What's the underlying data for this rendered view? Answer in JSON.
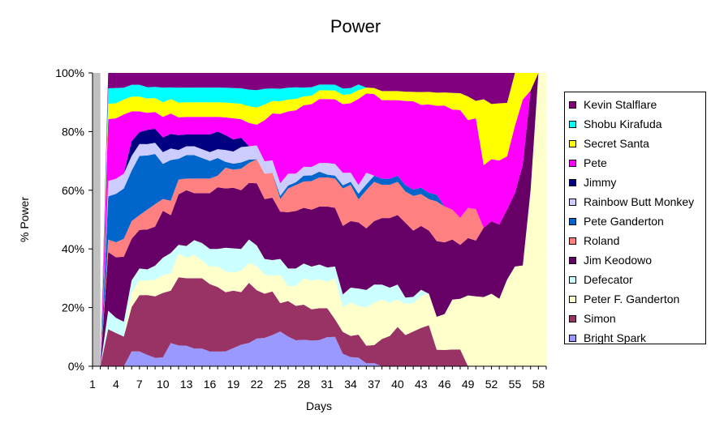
{
  "chart_data": {
    "type": "area",
    "stacked": "percent",
    "title": "Power",
    "xlabel": "Days",
    "ylabel": "% Power",
    "ylim": [
      0,
      100
    ],
    "y_ticks": [
      "0%",
      "20%",
      "40%",
      "60%",
      "80%",
      "100%"
    ],
    "x_ticks": [
      1,
      4,
      7,
      10,
      13,
      16,
      19,
      22,
      25,
      28,
      31,
      34,
      37,
      40,
      43,
      46,
      49,
      52,
      55,
      58
    ],
    "legend_position": "right",
    "x": [
      1,
      2,
      3,
      4,
      5,
      6,
      7,
      8,
      9,
      10,
      11,
      12,
      13,
      14,
      15,
      16,
      17,
      18,
      19,
      20,
      21,
      22,
      23,
      24,
      25,
      26,
      27,
      28,
      29,
      30,
      31,
      32,
      33,
      34,
      35,
      36,
      37,
      38,
      39,
      40,
      41,
      42,
      43,
      44,
      45,
      46,
      47,
      48,
      49,
      50,
      51,
      52,
      53,
      54,
      55,
      56,
      57,
      58,
      59
    ],
    "series": [
      {
        "name": "Bright Spark",
        "color": "#9999FF",
        "values": [
          0,
          0,
          0,
          0,
          0,
          5,
          5,
          4,
          3,
          3,
          8,
          7,
          7,
          6,
          6,
          5,
          5,
          5,
          6,
          7,
          7,
          8,
          9,
          10,
          11,
          10,
          9,
          9,
          9,
          9,
          10,
          10,
          4,
          3,
          3,
          1,
          1,
          0,
          0,
          0,
          0,
          0,
          0,
          0,
          0,
          0,
          0,
          0,
          0,
          0,
          0,
          0,
          0,
          0,
          0,
          0,
          0,
          0,
          0
        ]
      },
      {
        "name": "Simon",
        "color": "#993366",
        "values": [
          0,
          0,
          12,
          11,
          10,
          15,
          19,
          21,
          22,
          22,
          18,
          23,
          23,
          24,
          24,
          23,
          22,
          20,
          19,
          17,
          18,
          14,
          14,
          14,
          9,
          12,
          12,
          12,
          11,
          11,
          10,
          6,
          7,
          7,
          8,
          6,
          6,
          9,
          10,
          13,
          10,
          11,
          12,
          13,
          5,
          5,
          5,
          5,
          0,
          0,
          0,
          0,
          0,
          0,
          0,
          0,
          0,
          0,
          0
        ]
      },
      {
        "name": "Peter F. Ganderton",
        "color": "#FFFFCC",
        "values": [
          0,
          0,
          0,
          0,
          0,
          5,
          5,
          5,
          6,
          6,
          6,
          8,
          7,
          8,
          6,
          6,
          7,
          7,
          6,
          7,
          6,
          7,
          6,
          5,
          9,
          5,
          7,
          9,
          10,
          10,
          9,
          14,
          8,
          11,
          10,
          13,
          14,
          13,
          11,
          9,
          10,
          9,
          10,
          10,
          10,
          11,
          15,
          15,
          21,
          20,
          21,
          21,
          20,
          26,
          34,
          34,
          60,
          100,
          100
        ]
      },
      {
        "name": "Defecator",
        "color": "#CCFFFF",
        "values": [
          0,
          0,
          6,
          5,
          5,
          4,
          4,
          4,
          5,
          6,
          7,
          3,
          4,
          5,
          6,
          6,
          6,
          8,
          8,
          7,
          7,
          6,
          5,
          5,
          5,
          6,
          6,
          5,
          5,
          5,
          5,
          4,
          4,
          5,
          6,
          6,
          6,
          5,
          5,
          5,
          2,
          2,
          2,
          0,
          0,
          0,
          0,
          0,
          0,
          0,
          0,
          0,
          0,
          0,
          0,
          0,
          0,
          0,
          0
        ]
      },
      {
        "name": "Jim Keodowo",
        "color": "#660066",
        "values": [
          0,
          0,
          19,
          20,
          22,
          14,
          13,
          14,
          14,
          16,
          13,
          17,
          19,
          16,
          17,
          19,
          21,
          20,
          20,
          19,
          17,
          18,
          19,
          20,
          15,
          19,
          20,
          19,
          20,
          20,
          21,
          20,
          22,
          22,
          23,
          21,
          21,
          22,
          23,
          23,
          24,
          21,
          20,
          20,
          23,
          22,
          18,
          16,
          17,
          16,
          21,
          21,
          22,
          21,
          25,
          34,
          34,
          0,
          0
        ]
      },
      {
        "name": "Roland",
        "color": "#FF8080",
        "values": [
          0,
          0,
          4,
          5,
          6,
          6,
          5,
          7,
          8,
          4,
          5,
          5,
          4,
          5,
          5,
          5,
          4,
          7,
          6,
          7,
          6,
          7,
          8,
          8,
          4,
          8,
          9,
          9,
          10,
          10,
          10,
          10,
          12,
          12,
          8,
          13,
          13,
          11,
          11,
          11,
          10,
          11,
          10,
          10,
          12,
          11,
          9,
          8,
          9,
          9,
          0,
          0,
          0,
          0,
          0,
          0,
          0,
          0,
          0
        ]
      },
      {
        "name": "Pete Ganderton",
        "color": "#0066CC",
        "values": [
          0,
          0,
          14,
          16,
          17,
          17,
          20,
          19,
          18,
          12,
          14,
          7,
          8,
          8,
          7,
          6,
          6,
          2,
          2,
          2,
          1,
          0,
          0,
          0,
          1,
          1,
          1,
          2,
          2,
          2,
          1,
          1,
          1,
          1,
          2,
          2,
          2,
          2,
          2,
          2,
          2,
          2,
          2,
          2,
          2,
          0,
          0,
          0,
          0,
          0,
          0,
          0,
          0,
          0,
          0,
          0,
          0,
          0,
          0
        ]
      },
      {
        "name": "Rainbow Butt Monkey",
        "color": "#CCCCFF",
        "values": [
          0,
          0,
          5,
          5,
          5,
          5,
          4,
          4,
          4,
          4,
          4,
          3,
          3,
          3,
          3,
          3,
          3,
          4,
          4,
          5,
          4,
          4,
          4,
          4,
          4,
          4,
          3,
          3,
          3,
          3,
          4,
          4,
          4,
          3,
          3,
          4,
          0,
          0,
          0,
          0,
          0,
          0,
          0,
          0,
          0,
          0,
          0,
          0,
          0,
          0,
          0,
          0,
          0,
          0,
          0,
          0,
          0,
          0,
          0
        ]
      },
      {
        "name": "Jimmy",
        "color": "#000080",
        "values": [
          0,
          0,
          0,
          0,
          0,
          5,
          4,
          5,
          5,
          5,
          5,
          5,
          4,
          4,
          5,
          6,
          6,
          5,
          4,
          3,
          0,
          0,
          0,
          0,
          0,
          0,
          0,
          0,
          0,
          0,
          0,
          0,
          0,
          0,
          0,
          0,
          0,
          0,
          0,
          0,
          0,
          0,
          0,
          0,
          0,
          0,
          0,
          0,
          0,
          0,
          0,
          0,
          0,
          0,
          0,
          0,
          0,
          0,
          0
        ]
      },
      {
        "name": "Pete",
        "color": "#FF00FF",
        "values": [
          0,
          0,
          20,
          20,
          20,
          10,
          7,
          6,
          6,
          7,
          7,
          6,
          6,
          6,
          6,
          6,
          5,
          6,
          7,
          6,
          7,
          6,
          13,
          15,
          22,
          21,
          22,
          21,
          22,
          22,
          22,
          22,
          22,
          23,
          30,
          27,
          27,
          26,
          26,
          25,
          27,
          28,
          26,
          28,
          27,
          31,
          30,
          32,
          26,
          26,
          19,
          18,
          19,
          16,
          23,
          22,
          0,
          0,
          0
        ]
      },
      {
        "name": "Secret Santa",
        "color": "#FFFF00",
        "values": [
          0,
          0,
          5,
          5,
          5,
          5,
          5,
          5,
          5,
          5,
          5,
          5,
          5,
          5,
          5,
          5,
          5,
          5,
          5,
          5,
          5,
          5,
          5,
          4,
          4,
          4,
          4,
          3,
          3,
          3,
          3,
          3,
          3,
          3,
          3,
          2,
          2,
          3,
          3,
          3,
          3,
          3,
          4,
          4,
          4,
          4,
          5,
          5,
          7,
          5,
          20,
          16,
          17,
          16,
          18,
          9,
          6,
          0,
          0
        ]
      },
      {
        "name": "Shobu Kirafuda",
        "color": "#00FFFF",
        "values": [
          0,
          0,
          5,
          5,
          4,
          4,
          4,
          4,
          4,
          5,
          4,
          5,
          5,
          5,
          5,
          5,
          5,
          5,
          5,
          5,
          5,
          5,
          5,
          4,
          4,
          4,
          4,
          3,
          3,
          2,
          2,
          2,
          2,
          2,
          2,
          0,
          0,
          0,
          0,
          0,
          0,
          0,
          0,
          0,
          0,
          0,
          0,
          0,
          0,
          0,
          0,
          0,
          0,
          0,
          0,
          0,
          0,
          0,
          0
        ]
      },
      {
        "name": "Kevin Stalflare",
        "color": "#800080",
        "values": [
          0,
          0,
          5,
          5,
          5,
          4,
          4,
          5,
          5,
          5,
          5,
          5,
          5,
          5,
          5,
          5,
          5,
          5,
          5,
          5,
          5,
          5,
          5,
          5,
          5,
          5,
          5,
          5,
          5,
          4,
          4,
          4,
          5,
          5,
          4,
          5,
          5,
          6,
          6,
          6,
          6,
          6,
          6,
          6,
          6,
          6,
          6,
          6,
          7,
          8,
          8,
          9,
          9,
          9,
          0,
          0,
          0,
          0,
          0
        ]
      }
    ],
    "background_band": {
      "color": "#C0C0C0",
      "x_range": [
        1,
        2
      ]
    }
  }
}
